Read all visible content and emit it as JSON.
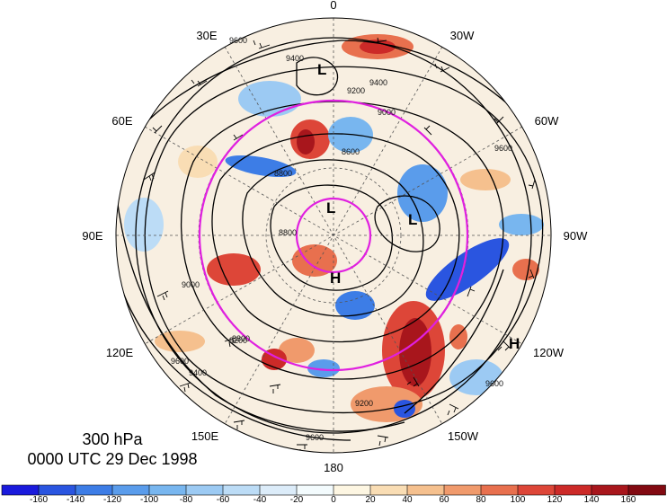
{
  "title": {
    "level": "300 hPa",
    "time": "0000 UTC 29 Dec 1998"
  },
  "longitude_labels": {
    "lon_0": "0",
    "lon_30w": "30W",
    "lon_60w": "60W",
    "lon_90w": "90W",
    "lon_120w": "120W",
    "lon_150w": "150W",
    "lon_180": "180",
    "lon_150e": "150E",
    "lon_120e": "120E",
    "lon_90e": "90E",
    "lon_60e": "60E",
    "lon_30e": "30E"
  },
  "pressure_centers": [
    {
      "symbol": "L"
    },
    {
      "symbol": "L"
    },
    {
      "symbol": "L"
    },
    {
      "symbol": "H"
    },
    {
      "symbol": "H"
    }
  ],
  "contour_labels": [
    "9600",
    "9400",
    "9200",
    "9000",
    "8800",
    "8600",
    "8800",
    "9400",
    "9600",
    "9200",
    "9000",
    "8800",
    "9400",
    "9600",
    "9200",
    "9600",
    "9600"
  ],
  "colorbar": {
    "tick_labels": [
      "-160",
      "-140",
      "-120",
      "-100",
      "-80",
      "-60",
      "-40",
      "-20",
      "0",
      "20",
      "40",
      "60",
      "80",
      "100",
      "120",
      "140",
      "160"
    ],
    "colors": [
      "#1a1adc",
      "#2a55e0",
      "#3d7de6",
      "#5a9ceb",
      "#78b6ef",
      "#9ccaf3",
      "#bcdcf6",
      "#dcecf9",
      "#f3fbfd",
      "#fdf6e2",
      "#f9ddb4",
      "#f5c08e",
      "#f09a6c",
      "#e8704e",
      "#dd4638",
      "#cc2a28",
      "#a8161c",
      "#820a12"
    ]
  }
}
